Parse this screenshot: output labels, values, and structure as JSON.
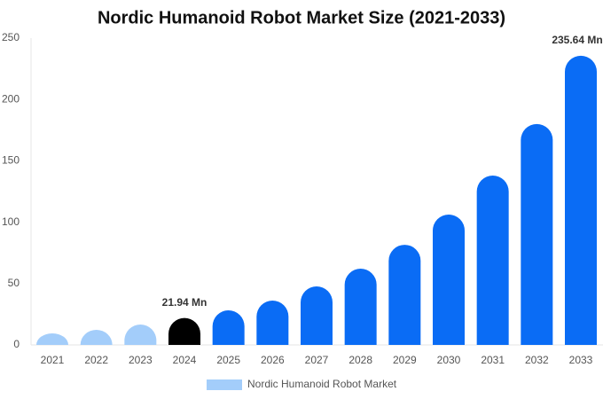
{
  "chart_data": {
    "type": "bar",
    "title": "Nordic Humanoid Robot Market Size (2021-2033)",
    "categories": [
      "2021",
      "2022",
      "2023",
      "2024",
      "2025",
      "2026",
      "2027",
      "2028",
      "2029",
      "2030",
      "2031",
      "2032",
      "2033"
    ],
    "series": [
      {
        "name": "Nordic Humanoid Robot Market",
        "color": "#a3cdfa",
        "values": [
          9.4,
          12.3,
          16.6,
          21.94,
          28.2,
          36.1,
          47.7,
          62.1,
          81.6,
          106.2,
          138,
          180,
          235.64
        ],
        "bar_colors": [
          "#a3cdfa",
          "#a3cdfa",
          "#a3cdfa",
          "#000000",
          "#0a6cf5",
          "#0a6cf5",
          "#0a6cf5",
          "#0a6cf5",
          "#0a6cf5",
          "#0a6cf5",
          "#0a6cf5",
          "#0a6cf5",
          "#0a6cf5"
        ],
        "value_labels": [
          null,
          null,
          null,
          "21.94 Mn",
          null,
          null,
          null,
          null,
          null,
          null,
          null,
          null,
          "235.64 Mn"
        ]
      }
    ],
    "ylim": [
      0,
      250
    ],
    "yticks": [
      0,
      50,
      100,
      150,
      200,
      250
    ],
    "grid": false
  }
}
